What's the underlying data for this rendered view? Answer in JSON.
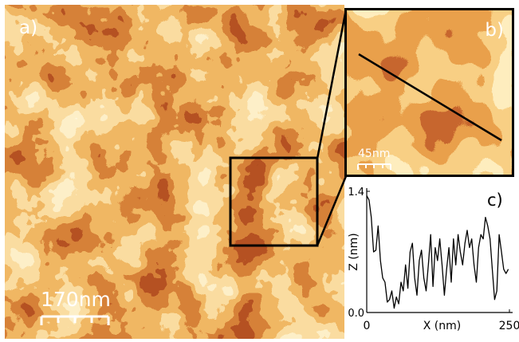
{
  "panels": {
    "a": {
      "label": "a)",
      "scale_bar": "170nm"
    },
    "b": {
      "label": "b)",
      "scale_bar": "45nm"
    },
    "c": {
      "label": "c)"
    }
  },
  "colors": {
    "dark": "#3a0a02",
    "deep_red": "#8c1a04",
    "mid": "#cf5a10",
    "orange": "#ef9a32",
    "light": "#fbd685",
    "pale": "#fff1c8"
  },
  "chart_data": {
    "type": "line",
    "title": "",
    "xlabel": "X (nm)",
    "ylabel": "Z (nm)",
    "xlim": [
      0,
      250
    ],
    "ylim": [
      0,
      1.4
    ],
    "x_ticks": [
      "0",
      "250"
    ],
    "y_ticks": [
      "0.0",
      "1.4"
    ],
    "x": [
      0,
      4,
      8,
      12,
      16,
      20,
      24,
      28,
      32,
      36,
      40,
      44,
      48,
      52,
      56,
      60,
      64,
      68,
      72,
      76,
      80,
      84,
      88,
      92,
      96,
      100,
      104,
      108,
      112,
      116,
      120,
      124,
      128,
      132,
      136,
      140,
      144,
      148,
      152,
      156,
      160,
      164,
      168,
      172,
      176,
      180,
      184,
      188,
      192,
      196,
      200,
      204,
      208,
      212,
      216,
      220,
      224,
      228,
      232,
      236,
      240,
      244,
      248
    ],
    "y": [
      1.35,
      1.3,
      1.1,
      0.7,
      0.72,
      1.0,
      0.6,
      0.4,
      0.35,
      0.12,
      0.15,
      0.25,
      0.05,
      0.18,
      0.1,
      0.35,
      0.25,
      0.55,
      0.28,
      0.7,
      0.8,
      0.4,
      0.2,
      0.6,
      0.72,
      0.4,
      0.25,
      0.55,
      0.9,
      0.3,
      0.75,
      0.6,
      0.85,
      0.55,
      0.2,
      0.5,
      0.75,
      0.35,
      0.85,
      0.55,
      0.9,
      0.7,
      0.55,
      0.8,
      0.95,
      0.75,
      0.85,
      0.55,
      0.35,
      0.75,
      0.9,
      0.85,
      1.1,
      1.0,
      0.85,
      0.5,
      0.15,
      0.25,
      0.9,
      0.7,
      0.5,
      0.45,
      0.5
    ]
  }
}
